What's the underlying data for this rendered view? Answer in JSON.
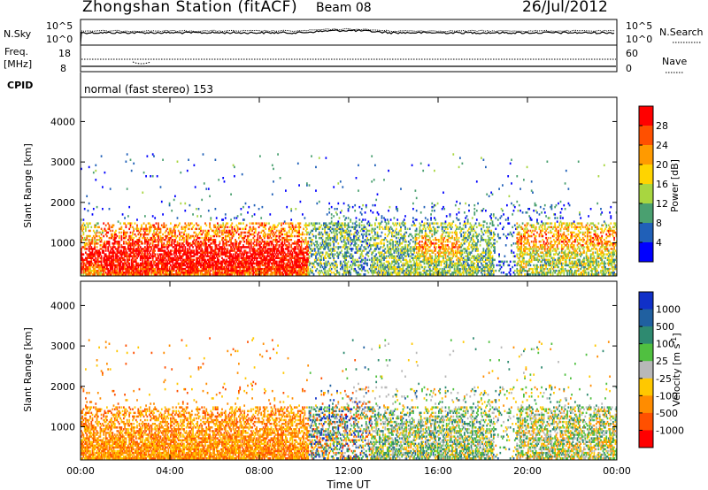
{
  "header": {
    "station": "Zhongshan Station (fitACF)",
    "beam": "Beam 08",
    "date": "26/Jul/2012"
  },
  "aux": {
    "nsky_label": "N.Sky",
    "nsearch_label": "N.Search",
    "nsky_ticks": [
      "10^5",
      "10^0"
    ],
    "nsearch_ticks": [
      "10^5",
      "10^0"
    ],
    "freq_label_line1": "Freq.",
    "freq_label_line2": "[MHz]",
    "freq_ticks": [
      "18",
      "8"
    ],
    "nave_ticks": [
      "60",
      "0"
    ],
    "nave_label": "Nave",
    "cpid_label": "CPID",
    "cpid_text": "normal (fast stereo) 153"
  },
  "chart_data": [
    {
      "type": "heatmap",
      "title": "",
      "quantity": "Power",
      "ylabel": "Slant Range [km]",
      "xlabel": "",
      "ylim": [
        180,
        4600
      ],
      "yticks": [
        "4000",
        "3000",
        "2000",
        "1000"
      ],
      "yticks_values": [
        4000,
        3000,
        2000,
        1000
      ],
      "xlim_hours": [
        0,
        24
      ],
      "colorbar": {
        "label": "Power [dB]",
        "ticks": [
          "28",
          "24",
          "20",
          "16",
          "12",
          "8",
          "4"
        ],
        "colors": [
          "#ff0000",
          "#ff5000",
          "#ff9a00",
          "#ffd400",
          "#a8d640",
          "#4aa070",
          "#2060b8",
          "#0000ff"
        ]
      },
      "note": "Backscatter power concentrated 200-1500 km, strongest (red) 01:00-10:00 and 16:00, patches 19:00-24:00"
    },
    {
      "type": "heatmap",
      "title": "",
      "quantity": "Velocity",
      "ylabel": "Slant Range [km]",
      "xlabel": "Time UT",
      "ylim": [
        180,
        4600
      ],
      "yticks": [
        "4000",
        "3000",
        "2000",
        "1000"
      ],
      "yticks_values": [
        4000,
        3000,
        2000,
        1000
      ],
      "xticks": [
        "00:00",
        "04:00",
        "08:00",
        "12:00",
        "16:00",
        "20:00",
        "00:00"
      ],
      "xticks_hours": [
        0,
        4,
        8,
        12,
        16,
        20,
        24
      ],
      "colorbar": {
        "label": "Velocity [m s",
        "label_superscript": "-1",
        "label_end": "]",
        "ticks": [
          "1000",
          "500",
          "100",
          "25",
          "-25",
          "-100",
          "-500",
          "-1000"
        ],
        "colors": [
          "#1030c8",
          "#2060a0",
          "#2e8a70",
          "#50c040",
          "#b8b8b8",
          "#ffc800",
          "#ff8c00",
          "#ff5000",
          "#ff0000"
        ]
      },
      "note": "Mostly negative (orange) velocities 00:00-10:00, mixed green/blue positive after 10:00"
    }
  ],
  "colors": {
    "power_red": "#ff0000",
    "power_orange": "#ff8c00",
    "power_yellow": "#ffd400",
    "power_green": "#4aa070",
    "power_blue": "#2060b8",
    "vel_orange": "#ff8c00",
    "vel_green": "#2e8a70",
    "vel_blue": "#1030c8",
    "vel_grey": "#b8b8b8"
  }
}
